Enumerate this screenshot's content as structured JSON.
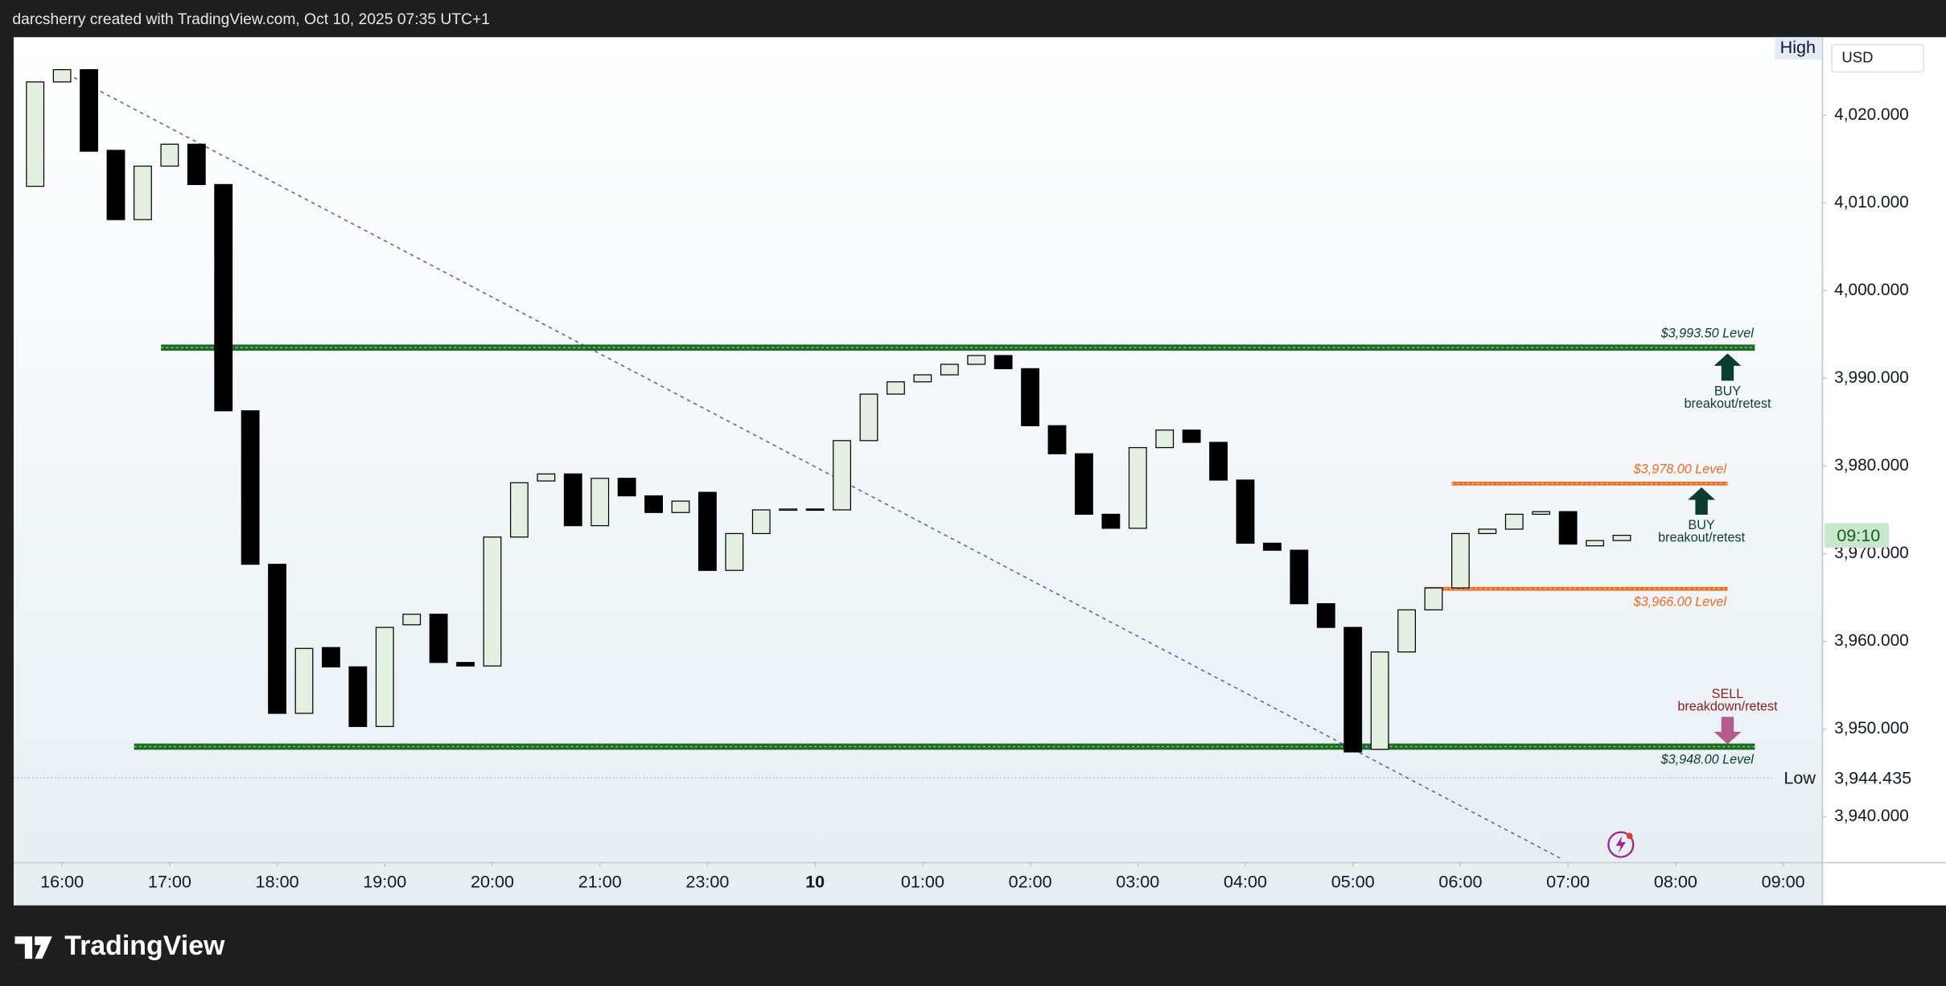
{
  "header": "darcsherry created with TradingView.com, Oct 10, 2025 07:35 UTC+1",
  "brand": "TradingView",
  "chart_data": {
    "type": "candlestick",
    "currency": "USD",
    "x": [
      0,
      1,
      2,
      3,
      4,
      5,
      6,
      7,
      8,
      9,
      10,
      11,
      12,
      13,
      14,
      15,
      16,
      17,
      18,
      19,
      20,
      21,
      22,
      23,
      24,
      25,
      26,
      27,
      28,
      29,
      30,
      31,
      32,
      33,
      34,
      35,
      36,
      37,
      38,
      39,
      40,
      41,
      42,
      43,
      44,
      45,
      46,
      47,
      48,
      49,
      50,
      51,
      52,
      53,
      54,
      55,
      56,
      57,
      58,
      59
    ],
    "open": [
      4011.9,
      4023.8,
      4025.2,
      4016.0,
      4008.1,
      4014.2,
      4016.7,
      4012.1,
      3986.3,
      3968.8,
      3951.8,
      3959.3,
      3957.1,
      3950.3,
      3961.9,
      3963.1,
      3957.6,
      3957.2,
      3971.9,
      3978.3,
      3979.1,
      3973.2,
      3978.6,
      3976.6,
      3974.7,
      3977.0,
      3968.1,
      3972.3,
      3975.0,
      3975.1,
      3975.0,
      3982.9,
      3988.2,
      3989.6,
      3990.4,
      3991.6,
      3992.6,
      3991.1,
      3984.6,
      3981.4,
      3974.5,
      3972.9,
      3982.1,
      3984.1,
      3982.7,
      3978.4,
      3971.2,
      3970.4,
      3964.3,
      3961.6,
      3947.7,
      3958.8,
      3963.6,
      3966.1,
      3972.3,
      3972.8,
      3974.5,
      3974.8,
      3970.9,
      3971.5
    ],
    "high": {
      "name": "High"
    },
    "low": {
      "name": "Low",
      "value": 3944.435,
      "label": "3,944.435"
    },
    "close": [
      4023.8,
      4025.2,
      4015.9,
      4008.1,
      4014.2,
      4016.7,
      4012.1,
      3986.3,
      3968.8,
      3951.8,
      3959.2,
      3957.1,
      3950.3,
      3961.6,
      3963.1,
      3957.6,
      3957.2,
      3971.9,
      3978.1,
      3979.1,
      3973.2,
      3978.6,
      3976.6,
      3974.7,
      3976.0,
      3968.1,
      3972.3,
      3975.0,
      3975.1,
      3975.0,
      3982.9,
      3988.2,
      3989.6,
      3990.4,
      3991.6,
      3992.6,
      3991.1,
      3984.6,
      3981.4,
      3974.5,
      3972.9,
      3982.1,
      3984.1,
      3982.7,
      3978.4,
      3971.2,
      3970.4,
      3964.3,
      3961.6,
      3947.4,
      3958.8,
      3963.6,
      3966.1,
      3972.3,
      3972.8,
      3974.5,
      3974.8,
      3971.1,
      3971.5,
      3972.1
    ],
    "colors": {
      "up": "#e3efe0",
      "down": "#000000",
      "wick": "#000000"
    },
    "xlim": [
      -0.8,
      66.44
    ],
    "xticks": [
      {
        "value": 1,
        "label": "16:00"
      },
      {
        "value": 5,
        "label": "17:00"
      },
      {
        "value": 9,
        "label": "18:00"
      },
      {
        "value": 13,
        "label": "19:00"
      },
      {
        "value": 17,
        "label": "20:00"
      },
      {
        "value": 21,
        "label": "21:00"
      },
      {
        "value": 25,
        "label": "23:00"
      },
      {
        "value": 29,
        "label": "10"
      },
      {
        "value": 33,
        "label": "01:00"
      },
      {
        "value": 37,
        "label": "02:00"
      },
      {
        "value": 41,
        "label": "03:00"
      },
      {
        "value": 45,
        "label": "04:00"
      },
      {
        "value": 49,
        "label": "05:00"
      },
      {
        "value": 53,
        "label": "06:00"
      },
      {
        "value": 57,
        "label": "07:00"
      },
      {
        "value": 61,
        "label": "08:00"
      },
      {
        "value": 65,
        "label": "09:00"
      }
    ],
    "ylim": [
      3934.85,
      4028.9
    ],
    "yticks": [
      {
        "value": 3940,
        "label": "3,940.000"
      },
      {
        "value": 3950,
        "label": "3,950.000"
      },
      {
        "value": 3960,
        "label": "3,960.000"
      },
      {
        "value": 3970,
        "label": "3,970.000"
      },
      {
        "value": 3980,
        "label": "3,980.000"
      },
      {
        "value": 3990,
        "label": "3,990.000"
      },
      {
        "value": 4000,
        "label": "4,000.000"
      },
      {
        "value": 4010,
        "label": "4,010.000"
      },
      {
        "value": 4020,
        "label": "4,020.000"
      }
    ],
    "levels": [
      {
        "value": 3993.5,
        "label": "$3,993.50 Level",
        "color": "#1e6b23"
      },
      {
        "value": 3978,
        "label": "$3,978.00 Level",
        "color": "#f0691c"
      },
      {
        "value": 3966,
        "label": "$3,966.00 Level",
        "color": "#f0691c"
      },
      {
        "value": 3948,
        "label": "$3,948.00 Level",
        "color": "#1e6b23"
      }
    ],
    "trendline": {
      "x": [
        1.2,
        56.7
      ],
      "y": [
        4024.7,
        3935.3
      ],
      "color": "#5563b0"
    },
    "countdown": "09:10",
    "annotations": [
      {
        "action": "BUY",
        "text": "breakout/retest",
        "color": "#0b3d2e"
      },
      {
        "action": "BUY",
        "text": "breakout/retest",
        "color": "#0b3d2e"
      },
      {
        "action": "SELL",
        "text": "breakdown/retest",
        "color": "#8c1c1c",
        "arrow_color": "#b55a8e"
      }
    ]
  }
}
